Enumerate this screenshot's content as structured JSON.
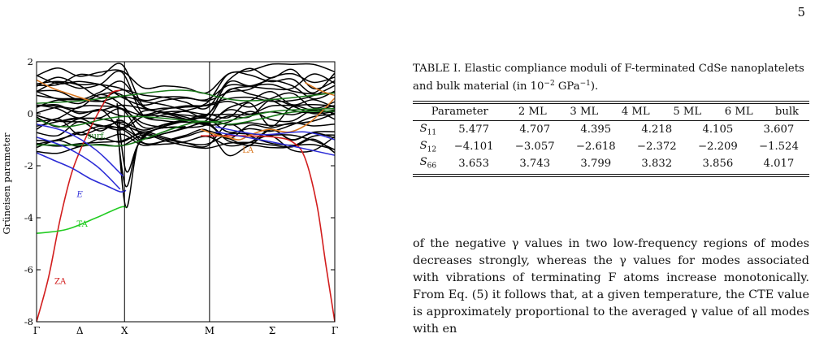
{
  "page_number": "5",
  "figure": {
    "y_axis_label": "Grüneisen parameter",
    "y_ticks": [
      "2",
      "0",
      "-2",
      "-4",
      "-6",
      "-8"
    ],
    "x_ticks": [
      "Γ",
      "Δ",
      "X",
      "M",
      "Σ",
      "Γ"
    ],
    "annotations": [
      {
        "text": "surf.",
        "color": "#1a7a1a"
      },
      {
        "text": "LA",
        "color": "#d9761e"
      },
      {
        "text": "E",
        "color": "#2b2bd6"
      },
      {
        "text": "TA",
        "color": "#22cc22"
      },
      {
        "text": "ZA",
        "color": "#d21e1e"
      }
    ],
    "colors": {
      "black": "#000000",
      "red": "#d21e1e",
      "green_bright": "#22cc22",
      "green_dark": "#1a7a1a",
      "blue": "#2b2bd6",
      "orange": "#d9761e"
    }
  },
  "chart_data": {
    "type": "line",
    "title": "",
    "xlabel": "",
    "ylabel": "Grüneisen parameter",
    "ylim": [
      -8,
      2
    ],
    "x_categories": [
      "Γ",
      "Δ",
      "X",
      "M",
      "Σ",
      "Γ"
    ],
    "series": [
      {
        "name": "ZA",
        "color": "#d21e1e",
        "x": [
          0.0,
          0.04,
          0.08,
          0.12,
          0.17,
          0.22,
          0.25,
          0.28
        ],
        "y": [
          -8.0,
          -6.3,
          -4.0,
          -2.2,
          -0.8,
          0.3,
          0.8,
          0.9
        ]
      },
      {
        "name": "ZA",
        "color": "#d21e1e",
        "x": [
          1.0,
          0.97,
          0.94,
          0.9,
          0.86,
          0.8,
          0.7,
          0.6,
          0.55
        ],
        "y": [
          -8.0,
          -5.8,
          -3.5,
          -1.7,
          -1.1,
          -0.9,
          -0.85,
          -0.85,
          -0.85
        ]
      },
      {
        "name": "TA",
        "color": "#22cc22",
        "x": [
          0.0,
          0.1,
          0.2,
          0.28,
          0.3
        ],
        "y": [
          -4.6,
          -4.45,
          -4.0,
          -3.6,
          -3.6
        ]
      },
      {
        "name": "surf.",
        "color": "#1a7a1a",
        "x": [
          0.0,
          0.1,
          0.2,
          0.3,
          0.45,
          0.55,
          0.65,
          0.75,
          0.85,
          0.95,
          1.0
        ],
        "y": [
          -1.2,
          -1.2,
          -1.2,
          -1.2,
          -0.6,
          -0.3,
          -0.4,
          -0.2,
          0.05,
          0.1,
          0.1
        ]
      },
      {
        "name": "E",
        "color": "#2b2bd6",
        "x": [
          0.0,
          0.06,
          0.12,
          0.18,
          0.24,
          0.28,
          0.3
        ],
        "y": [
          -1.5,
          -1.8,
          -2.1,
          -2.5,
          -2.8,
          -3.0,
          -2.95
        ]
      },
      {
        "name": "LA",
        "color": "#d9761e",
        "x": [
          0.55,
          0.6,
          0.64,
          0.68,
          0.72,
          0.78,
          0.85,
          0.92,
          1.0
        ],
        "y": [
          -0.6,
          -0.8,
          -0.9,
          -1.0,
          -0.8,
          -0.6,
          -0.7,
          -0.3,
          0.6
        ]
      }
    ]
  },
  "caption": {
    "prefix": "TABLE I. Elastic compliance moduli of F-terminated CdSe nanoplatelets and bulk material (in 10",
    "exp1": "−2",
    "unit": " GPa",
    "exp2": "−1",
    "suffix": ")."
  },
  "table": {
    "headers": [
      "Parameter",
      "2 ML",
      "3 ML",
      "4 ML",
      "5 ML",
      "6 ML",
      "bulk"
    ],
    "rows": [
      {
        "param": "S",
        "sub": "11",
        "values": [
          "5.477",
          "4.707",
          "4.395",
          "4.218",
          "4.105",
          "3.607"
        ]
      },
      {
        "param": "S",
        "sub": "12",
        "values": [
          "−4.101",
          "−3.057",
          "−2.618",
          "−2.372",
          "−2.209",
          "−1.524"
        ]
      },
      {
        "param": "S",
        "sub": "66",
        "values": [
          "3.653",
          "3.743",
          "3.799",
          "3.832",
          "3.856",
          "4.017"
        ]
      }
    ]
  },
  "body_text": {
    "p1": "of the negative γ values in two low-frequency regions of modes decreases strongly, whereas the γ values for modes associated with vibrations of terminating F atoms increase monotonically. From Eq. (5) it follows that, at a given temperature, the CTE value is approximately proportional to the averaged γ value of all modes with en"
  }
}
